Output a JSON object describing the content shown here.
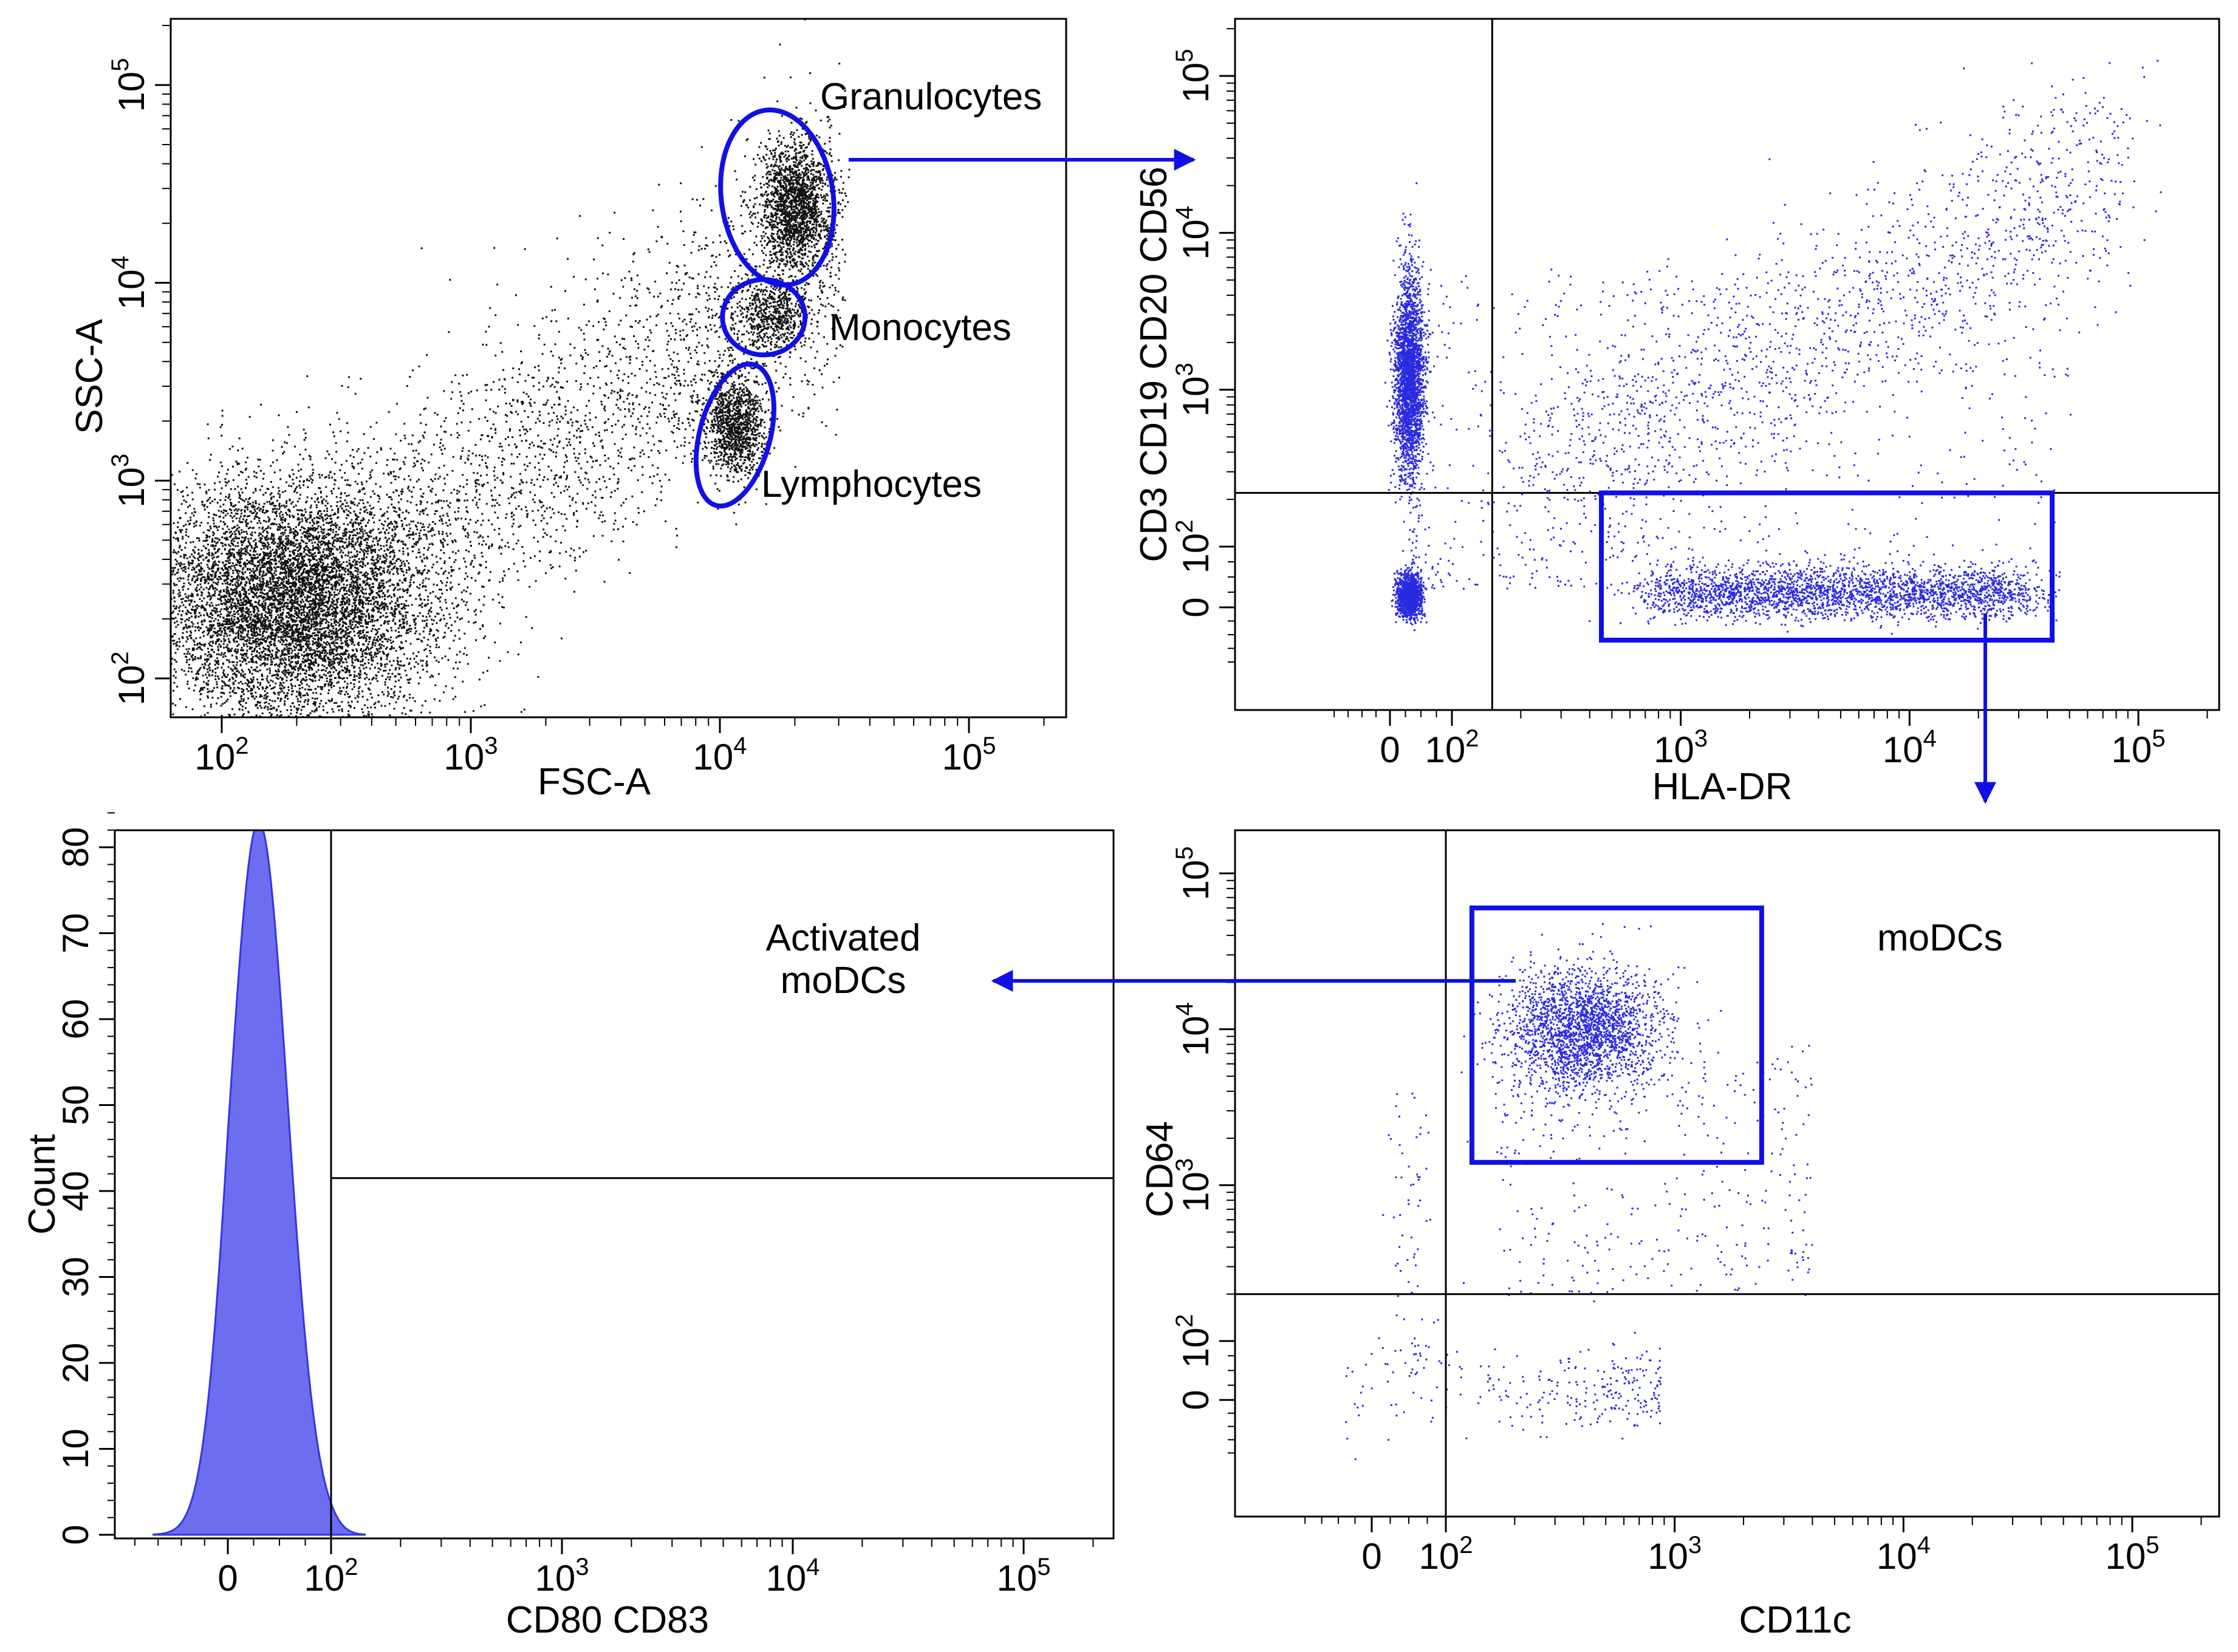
{
  "figure": {
    "annotations": {
      "granulocytes": "Granulocytes",
      "monocytes": "Monocytes",
      "lymphocytes": "Lymphocytes",
      "modcs": "moDCs",
      "activated_line1": "Activated",
      "activated_line2": "moDCs"
    },
    "colors": {
      "gate": "#1010e6",
      "arrow": "#1010e6",
      "dots_black": "#111111",
      "dots_blue": "#2a2ae0",
      "histogram_fill": "#6d6df0",
      "axis": "#000000"
    }
  },
  "chart_data": [
    {
      "id": "panel-a",
      "type": "scatter",
      "xlabel": "FSC-A",
      "ylabel": "SSC-A",
      "xscale": "log",
      "yscale": "log",
      "xlim": [
        70,
        250000
      ],
      "ylim": [
        70,
        250000
      ],
      "x_ticks": [
        {
          "value": 100,
          "label": "10",
          "exp": "2"
        },
        {
          "value": 1000,
          "label": "10",
          "exp": "3"
        },
        {
          "value": 10000,
          "label": "10",
          "exp": "4"
        },
        {
          "value": 100000,
          "label": "10",
          "exp": "5"
        }
      ],
      "y_ticks": [
        {
          "value": 100,
          "label": "10",
          "exp": "2"
        },
        {
          "value": 1000,
          "label": "10",
          "exp": "3"
        },
        {
          "value": 10000,
          "label": "10",
          "exp": "4"
        },
        {
          "value": 100000,
          "label": "10",
          "exp": "5"
        }
      ],
      "populations": [
        {
          "name": "debris",
          "center": [
            180,
            250
          ],
          "spread_log": [
            0.28,
            0.3
          ],
          "share": 0.55
        },
        {
          "name": "background",
          "center": [
            2000,
            1500
          ],
          "spread_log": [
            0.55,
            0.5
          ],
          "share": 0.2
        },
        {
          "name": "Granulocytes",
          "center": [
            20000,
            25000
          ],
          "spread_log": [
            0.07,
            0.16
          ],
          "share": 0.13
        },
        {
          "name": "Monocytes",
          "center": [
            16000,
            7000
          ],
          "spread_log": [
            0.07,
            0.09
          ],
          "share": 0.04
        },
        {
          "name": "Lymphocytes",
          "center": [
            11500,
            1900
          ],
          "spread_log": [
            0.06,
            0.12
          ],
          "share": 0.08
        }
      ],
      "gates": [
        {
          "name": "Granulocytes",
          "shape": "ellipse",
          "center": [
            17000,
            27000
          ]
        },
        {
          "name": "Monocytes",
          "shape": "ellipse",
          "center": [
            15000,
            6700
          ]
        },
        {
          "name": "Lymphocytes",
          "shape": "ellipse",
          "center": [
            11500,
            1700
          ]
        }
      ]
    },
    {
      "id": "panel-b",
      "type": "scatter",
      "xlabel": "HLA-DR",
      "ylabel": "CD3 CD19 CD20 CD56",
      "xscale": "biexponential",
      "yscale": "biexponential",
      "xlim": [
        -150,
        250000
      ],
      "ylim": [
        -150,
        250000
      ],
      "x_ticks": [
        {
          "value": 0,
          "label": "0",
          "exp": ""
        },
        {
          "value": 100,
          "label": "10",
          "exp": "2"
        },
        {
          "value": 1000,
          "label": "10",
          "exp": "3"
        },
        {
          "value": 10000,
          "label": "10",
          "exp": "4"
        },
        {
          "value": 100000,
          "label": "10",
          "exp": "5"
        }
      ],
      "y_ticks": [
        {
          "value": 0,
          "label": "0",
          "exp": ""
        },
        {
          "value": 100,
          "label": "10",
          "exp": "2"
        },
        {
          "value": 1000,
          "label": "10",
          "exp": "3"
        },
        {
          "value": 10000,
          "label": "10",
          "exp": "4"
        },
        {
          "value": 100000,
          "label": "10",
          "exp": "5"
        }
      ],
      "quadrant_lines": {
        "x": 150,
        "y": 220
      },
      "gates": [
        {
          "name": "moDCs",
          "shape": "rectangle",
          "x": [
            450,
            42000
          ],
          "y": [
            -60,
            220
          ]
        }
      ]
    },
    {
      "id": "panel-c",
      "type": "histogram",
      "xlabel": "CD80 CD83",
      "ylabel": "Count",
      "xscale": "biexponential",
      "xlim": [
        -150,
        250000
      ],
      "ylim": [
        0,
        85
      ],
      "x_ticks": [
        {
          "value": 0,
          "label": "0",
          "exp": ""
        },
        {
          "value": 100,
          "label": "10",
          "exp": "2"
        },
        {
          "value": 1000,
          "label": "10",
          "exp": "3"
        },
        {
          "value": 10000,
          "label": "10",
          "exp": "4"
        },
        {
          "value": 100000,
          "label": "10",
          "exp": "5"
        }
      ],
      "y_ticks": [
        0,
        10,
        20,
        30,
        40,
        50,
        60,
        70,
        80
      ],
      "peak": {
        "x": 30,
        "count": 83
      },
      "marker_x": 100,
      "marker_count": 41.5
    },
    {
      "id": "panel-d",
      "type": "scatter",
      "xlabel": "CD11c",
      "ylabel": "CD64",
      "xscale": "biexponential",
      "yscale": "biexponential",
      "xlim": [
        -150,
        250000
      ],
      "ylim": [
        -150,
        250000
      ],
      "x_ticks": [
        {
          "value": 0,
          "label": "0",
          "exp": ""
        },
        {
          "value": 100,
          "label": "10",
          "exp": "2"
        },
        {
          "value": 1000,
          "label": "10",
          "exp": "3"
        },
        {
          "value": 10000,
          "label": "10",
          "exp": "4"
        },
        {
          "value": 100000,
          "label": "10",
          "exp": "5"
        }
      ],
      "y_ticks": [
        {
          "value": 0,
          "label": "0",
          "exp": ""
        },
        {
          "value": 100,
          "label": "10",
          "exp": "2"
        },
        {
          "value": 1000,
          "label": "10",
          "exp": "3"
        },
        {
          "value": 10000,
          "label": "10",
          "exp": "4"
        },
        {
          "value": 100000,
          "label": "10",
          "exp": "5"
        }
      ],
      "quadrant_lines": {
        "x": 100,
        "y": 200
      },
      "gates": [
        {
          "name": "moDCs",
          "shape": "rectangle",
          "x": [
            130,
            2400
          ],
          "y": [
            1400,
            60000
          ]
        }
      ]
    }
  ]
}
